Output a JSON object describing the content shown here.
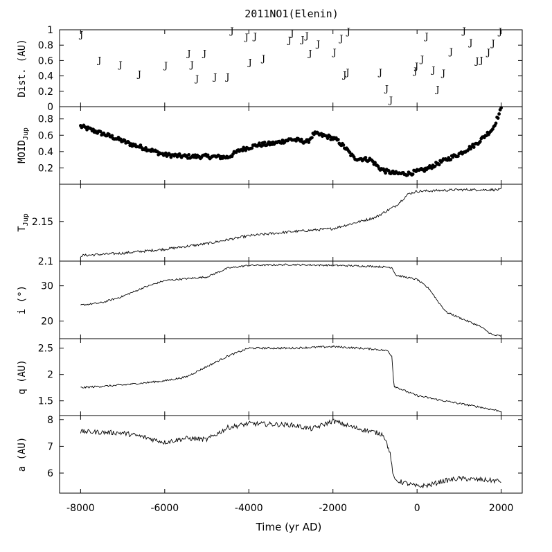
{
  "chart_data": {
    "type": "line",
    "title": "2011NO1(Elenin)",
    "xlabel": "Time (yr AD)",
    "xlim": [
      -8500,
      2500
    ],
    "xticks": [
      -8000,
      -6000,
      -4000,
      -2000,
      0,
      2000
    ],
    "xtick_labels": [
      "-8000",
      "-6000",
      "-4000",
      "-2000",
      "0",
      "2000"
    ],
    "panels": [
      {
        "id": "dist",
        "type": "scatter",
        "ylabel": "Dist. (AU)",
        "marker": "J",
        "ylim": [
          0,
          1
        ],
        "yticks": [
          0,
          0.2,
          0.4,
          0.6,
          0.8,
          1
        ],
        "ytick_labels": [
          "0",
          "0.2",
          "0.4",
          "0.6",
          "0.8",
          "1"
        ],
        "points": [
          [
            -7980,
            0.94
          ],
          [
            -7550,
            0.61
          ],
          [
            -7050,
            0.55
          ],
          [
            -6600,
            0.43
          ],
          [
            -5970,
            0.54
          ],
          [
            -5420,
            0.7
          ],
          [
            -5350,
            0.55
          ],
          [
            -5230,
            0.37
          ],
          [
            -5050,
            0.7
          ],
          [
            -4800,
            0.39
          ],
          [
            -4500,
            0.39
          ],
          [
            -4400,
            0.99
          ],
          [
            -4050,
            0.91
          ],
          [
            -3970,
            0.58
          ],
          [
            -3850,
            0.92
          ],
          [
            -3650,
            0.63
          ],
          [
            -3030,
            0.87
          ],
          [
            -2970,
            0.96
          ],
          [
            -2720,
            0.88
          ],
          [
            -2620,
            0.93
          ],
          [
            -2540,
            0.7
          ],
          [
            -2350,
            0.82
          ],
          [
            -1960,
            0.71
          ],
          [
            -1800,
            0.89
          ],
          [
            -1720,
            0.42
          ],
          [
            -1650,
            0.45
          ],
          [
            -1630,
            0.98
          ],
          [
            -870,
            0.45
          ],
          [
            -720,
            0.24
          ],
          [
            -620,
            0.09
          ],
          [
            -40,
            0.47
          ],
          [
            -10,
            0.53
          ],
          [
            120,
            0.62
          ],
          [
            230,
            0.92
          ],
          [
            390,
            0.48
          ],
          [
            490,
            0.23
          ],
          [
            630,
            0.44
          ],
          [
            810,
            0.72
          ],
          [
            1120,
            0.99
          ],
          [
            1280,
            0.84
          ],
          [
            1430,
            0.6
          ],
          [
            1530,
            0.61
          ],
          [
            1700,
            0.71
          ],
          [
            1810,
            0.83
          ],
          [
            1980,
            0.98
          ]
        ]
      },
      {
        "id": "moid",
        "type": "scatter",
        "ylabel": "MOID_Jup",
        "ylabel_main": "MOID",
        "ylabel_sub": "Jup",
        "ylim": [
          0,
          0.95
        ],
        "yticks": [
          0.2,
          0.4,
          0.6,
          0.8
        ],
        "ytick_labels": [
          "0.2",
          "0.4",
          "0.6",
          "0.8"
        ],
        "anchors": [
          [
            -8000,
            0.71
          ],
          [
            -7600,
            0.64
          ],
          [
            -7200,
            0.57
          ],
          [
            -6800,
            0.49
          ],
          [
            -6400,
            0.43
          ],
          [
            -6000,
            0.36
          ],
          [
            -5500,
            0.34
          ],
          [
            -5000,
            0.34
          ],
          [
            -4500,
            0.33
          ],
          [
            -4200,
            0.42
          ],
          [
            -3800,
            0.48
          ],
          [
            -3400,
            0.5
          ],
          [
            -3000,
            0.55
          ],
          [
            -2600,
            0.52
          ],
          [
            -2450,
            0.62
          ],
          [
            -2100,
            0.58
          ],
          [
            -1900,
            0.54
          ],
          [
            -1700,
            0.44
          ],
          [
            -1500,
            0.32
          ],
          [
            -1100,
            0.3
          ],
          [
            -900,
            0.2
          ],
          [
            -750,
            0.16
          ],
          [
            -500,
            0.13
          ],
          [
            -200,
            0.13
          ],
          [
            200,
            0.18
          ],
          [
            600,
            0.28
          ],
          [
            1000,
            0.37
          ],
          [
            1400,
            0.49
          ],
          [
            1800,
            0.68
          ],
          [
            2000,
            0.92
          ]
        ]
      },
      {
        "id": "tjup",
        "type": "line",
        "ylabel": "T_Jup",
        "ylabel_main": "T",
        "ylabel_sub": "Jup",
        "ylim": [
          2.1,
          2.197
        ],
        "yticks": [
          2.1,
          2.15
        ],
        "ytick_labels": [
          "2.1",
          "2.15"
        ],
        "anchors": [
          [
            -8000,
            2.107
          ],
          [
            -7000,
            2.11
          ],
          [
            -6000,
            2.115
          ],
          [
            -5000,
            2.122
          ],
          [
            -4000,
            2.132
          ],
          [
            -3000,
            2.137
          ],
          [
            -2000,
            2.141
          ],
          [
            -1500,
            2.148
          ],
          [
            -1000,
            2.155
          ],
          [
            -500,
            2.17
          ],
          [
            -200,
            2.185
          ],
          [
            0,
            2.188
          ],
          [
            500,
            2.189
          ],
          [
            1000,
            2.19
          ],
          [
            2000,
            2.19
          ]
        ]
      },
      {
        "id": "incl",
        "type": "line",
        "ylabel": "i (°)",
        "ylim": [
          15,
          37
        ],
        "yticks": [
          20,
          30
        ],
        "ytick_labels": [
          "20",
          "30"
        ],
        "anchors": [
          [
            -8000,
            24.5
          ],
          [
            -7500,
            25.2
          ],
          [
            -7000,
            27.0
          ],
          [
            -6500,
            29.5
          ],
          [
            -6000,
            31.5
          ],
          [
            -5000,
            32.5
          ],
          [
            -4500,
            35.0
          ],
          [
            -4000,
            35.8
          ],
          [
            -3000,
            36.0
          ],
          [
            -2000,
            35.8
          ],
          [
            -1000,
            35.5
          ],
          [
            -600,
            35.2
          ],
          [
            -500,
            33.0
          ],
          [
            0,
            31.8
          ],
          [
            300,
            29.0
          ],
          [
            500,
            25.5
          ],
          [
            700,
            22.5
          ],
          [
            1000,
            21.0
          ],
          [
            1500,
            18.5
          ],
          [
            1800,
            16.0
          ],
          [
            2000,
            15.8
          ]
        ]
      },
      {
        "id": "q",
        "type": "line",
        "ylabel": "q (AU)",
        "ylim": [
          1.22,
          2.68
        ],
        "yticks": [
          1.5,
          2,
          2.5
        ],
        "ytick_labels": [
          "1.5",
          "2",
          "2.5"
        ],
        "anchors": [
          [
            -8000,
            1.75
          ],
          [
            -7000,
            1.8
          ],
          [
            -6000,
            1.88
          ],
          [
            -5500,
            1.95
          ],
          [
            -5000,
            2.15
          ],
          [
            -4500,
            2.35
          ],
          [
            -4000,
            2.5
          ],
          [
            -3000,
            2.5
          ],
          [
            -2000,
            2.53
          ],
          [
            -1000,
            2.48
          ],
          [
            -700,
            2.45
          ],
          [
            -600,
            2.35
          ],
          [
            -550,
            1.78
          ],
          [
            -200,
            1.66
          ],
          [
            0,
            1.6
          ],
          [
            500,
            1.52
          ],
          [
            1000,
            1.45
          ],
          [
            1500,
            1.38
          ],
          [
            2000,
            1.3
          ]
        ]
      },
      {
        "id": "a",
        "type": "line",
        "ylabel": "a (AU)",
        "ylim": [
          5.25,
          8.15
        ],
        "yticks": [
          6,
          7,
          8
        ],
        "ytick_labels": [
          "6",
          "7",
          "8"
        ],
        "anchors": [
          [
            -8000,
            7.55
          ],
          [
            -7000,
            7.5
          ],
          [
            -6500,
            7.35
          ],
          [
            -6000,
            7.15
          ],
          [
            -5500,
            7.3
          ],
          [
            -5000,
            7.25
          ],
          [
            -4500,
            7.7
          ],
          [
            -4000,
            7.85
          ],
          [
            -3000,
            7.8
          ],
          [
            -2500,
            7.65
          ],
          [
            -2000,
            7.95
          ],
          [
            -1500,
            7.7
          ],
          [
            -800,
            7.45
          ],
          [
            -650,
            6.8
          ],
          [
            -550,
            5.75
          ],
          [
            0,
            5.5
          ],
          [
            300,
            5.55
          ],
          [
            600,
            5.7
          ],
          [
            1000,
            5.8
          ],
          [
            1500,
            5.75
          ],
          [
            2000,
            5.7
          ]
        ]
      }
    ]
  }
}
